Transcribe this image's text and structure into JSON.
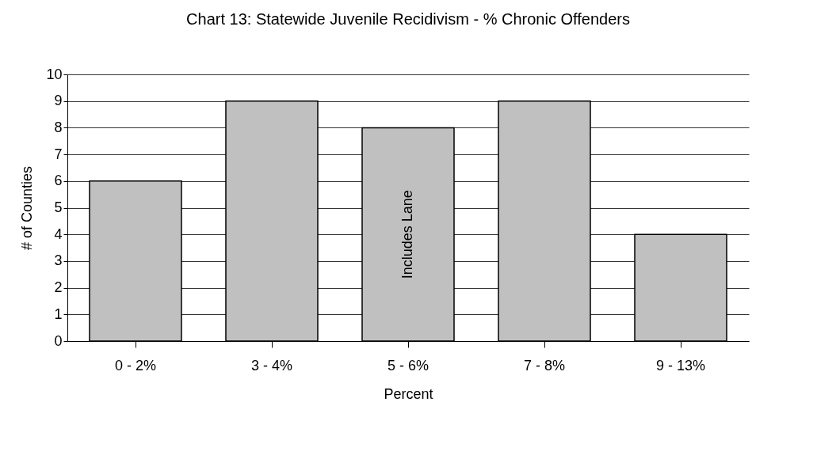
{
  "chart_data": {
    "type": "bar",
    "title": "Chart 13: Statewide Juvenile Recidivism - % Chronic Offenders",
    "xlabel": "Percent",
    "ylabel": "# of Counties",
    "categories": [
      "0 - 2%",
      "3 - 4%",
      "5 - 6%",
      "7 - 8%",
      "9 - 13%"
    ],
    "values": [
      6,
      9,
      8,
      9,
      4
    ],
    "color": "#c0c0c0",
    "ylim": [
      0,
      10
    ],
    "yticks": [
      0,
      1,
      2,
      3,
      4,
      5,
      6,
      7,
      8,
      9,
      10
    ],
    "grid": "y",
    "annotations": [
      "Includes Lane"
    ]
  }
}
